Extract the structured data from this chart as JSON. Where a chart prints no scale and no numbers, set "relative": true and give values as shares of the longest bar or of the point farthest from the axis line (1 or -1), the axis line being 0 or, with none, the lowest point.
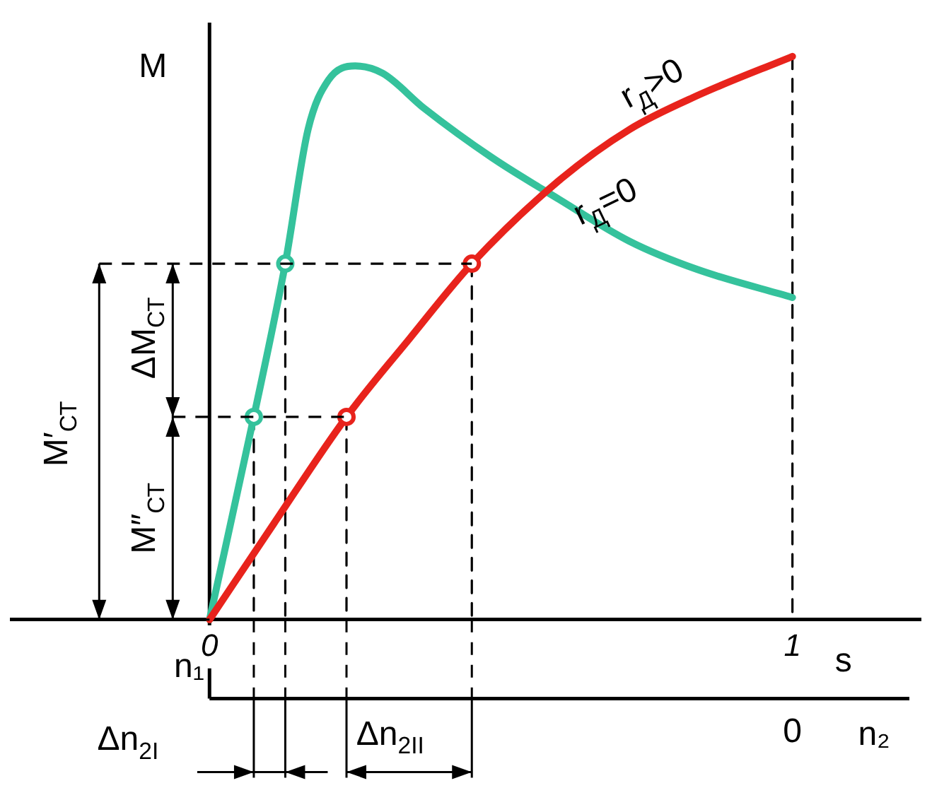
{
  "chart_data": {
    "type": "line",
    "relative": true,
    "ylabel": "M",
    "xlabel": "s",
    "xlim": [
      -0.34,
      1.22
    ],
    "xticks": [
      0,
      1
    ],
    "legend": false,
    "marker": "none",
    "line_style": "solid",
    "series": [
      {
        "type": "line",
        "color": "#e8231c",
        "x": [
          0,
          0.11,
          0.235,
          0.344,
          0.45,
          0.6,
          0.72,
          0.836,
          1
        ],
        "values": [
          0,
          0.17,
          0.36,
          0.5,
          0.632,
          0.78,
          0.87,
          0.93,
          1
        ]
      },
      {
        "type": "line",
        "color": "#35c29c",
        "x": [
          0,
          0.076,
          0.13,
          0.169,
          0.204,
          0.25,
          0.297,
          0.368,
          0.485,
          0.6,
          0.72,
          0.836,
          1
        ],
        "values": [
          0,
          0.36,
          0.632,
          0.87,
          0.958,
          0.983,
          0.97,
          0.908,
          0.82,
          0.746,
          0.672,
          0.622,
          0.572
        ]
      },
      {
        "type": "line",
        "color": "#000000",
        "line_style": "dashed",
        "x": [
          0.076,
          0.076
        ],
        "values": [
          0.36,
          0
        ]
      },
      {
        "type": "line",
        "color": "#000000",
        "line_style": "dashed",
        "x": [
          0.13,
          0.13
        ],
        "values": [
          0.632,
          0
        ]
      },
      {
        "type": "line",
        "color": "#000000",
        "line_style": "dashed",
        "x": [
          0.235,
          0.235
        ],
        "values": [
          0.36,
          0
        ]
      },
      {
        "type": "line",
        "color": "#000000",
        "line_style": "dashed",
        "x": [
          0.45,
          0.45
        ],
        "values": [
          0.632,
          0
        ]
      },
      {
        "type": "line",
        "color": "#000000",
        "line_style": "dashed",
        "x": [
          1,
          1
        ],
        "values": [
          1,
          0
        ]
      },
      {
        "type": "scatter",
        "color": "#35c29c",
        "marker": "circle",
        "x": [
          0.076,
          0.13
        ],
        "values": [
          0.36,
          0.632
        ]
      },
      {
        "type": "scatter",
        "color": "#e8231c",
        "marker": "circle",
        "x": [
          0.235,
          0.45
        ],
        "values": [
          0.36,
          0.632
        ]
      }
    ],
    "annotations": [
      "r$_{Д}$>0",
      "r$_{Д}$=0",
      "M′$_{СТ}$",
      "M″$_{СТ}$",
      "ΔM$_{СТ}$",
      "Δn$_{2I}$",
      "Δn$_{2II}$",
      "n₁",
      "0",
      "n₂"
    ]
  }
}
